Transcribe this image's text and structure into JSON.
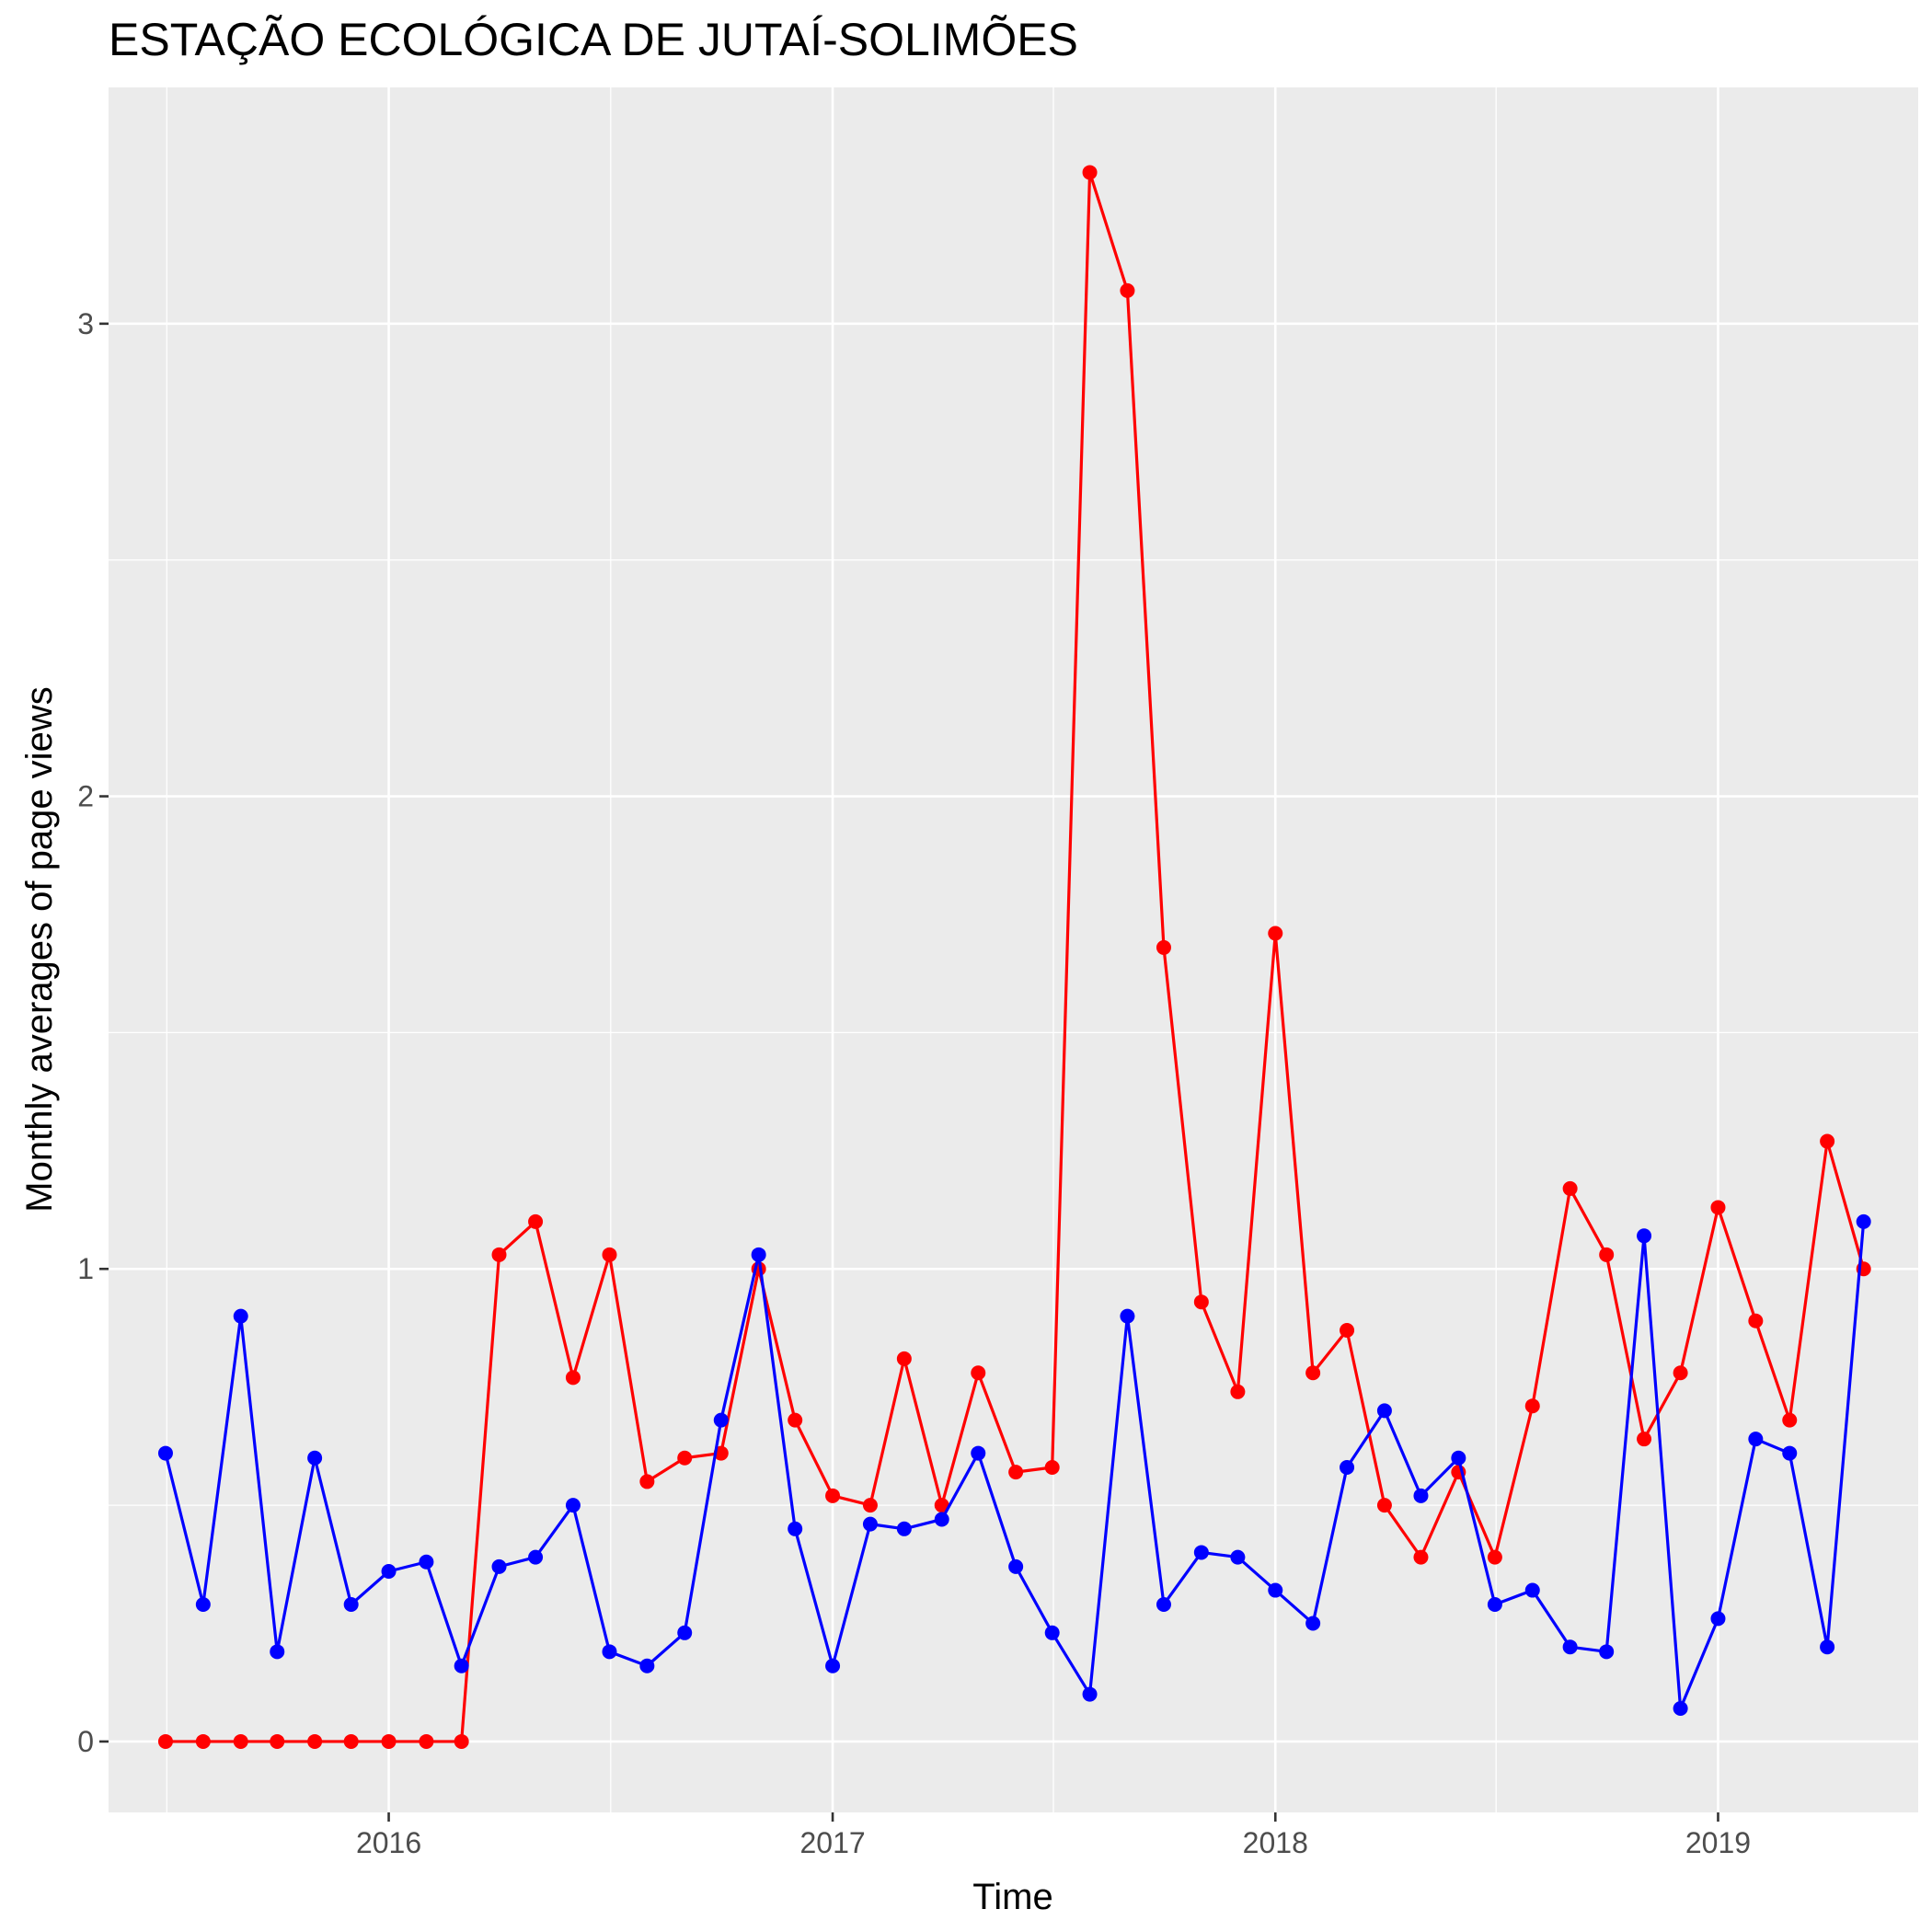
{
  "chart_data": {
    "type": "line",
    "title": "ESTAÇÃO ECOLÓGICA DE JUTAÍ-SOLIMÕES",
    "xlabel": "Time",
    "ylabel": "Monthly averages of page views",
    "x_ticks": [
      {
        "date": "2016-01",
        "label": "2016"
      },
      {
        "date": "2017-01",
        "label": "2017"
      },
      {
        "date": "2018-01",
        "label": "2018"
      },
      {
        "date": "2019-01",
        "label": "2019"
      }
    ],
    "y_ticks": [
      0,
      1,
      2,
      3
    ],
    "ylim": [
      -0.15,
      3.5
    ],
    "xlim": [
      "2015-05-15",
      "2019-06-15"
    ],
    "grid": true,
    "background": "#ebebeb",
    "x": [
      "2015-07",
      "2015-08",
      "2015-09",
      "2015-10",
      "2015-11",
      "2015-12",
      "2016-01",
      "2016-02",
      "2016-03",
      "2016-04",
      "2016-05",
      "2016-06",
      "2016-07",
      "2016-08",
      "2016-09",
      "2016-10",
      "2016-11",
      "2016-12",
      "2017-01",
      "2017-02",
      "2017-03",
      "2017-04",
      "2017-05",
      "2017-06",
      "2017-07",
      "2017-08",
      "2017-09",
      "2017-10",
      "2017-11",
      "2017-12",
      "2018-01",
      "2018-02",
      "2018-03",
      "2018-04",
      "2018-05",
      "2018-06",
      "2018-07",
      "2018-08",
      "2018-09",
      "2018-10",
      "2018-11",
      "2018-12",
      "2019-01",
      "2019-02",
      "2019-03",
      "2019-04",
      "2019-05"
    ],
    "series": [
      {
        "color": "#ff0000",
        "values": [
          0,
          0,
          0,
          0,
          0,
          0,
          0,
          0,
          0,
          1.03,
          1.1,
          0.77,
          1.03,
          0.55,
          0.6,
          0.61,
          1.0,
          0.68,
          0.52,
          0.5,
          0.81,
          0.5,
          0.78,
          0.57,
          0.58,
          3.32,
          3.07,
          1.68,
          0.93,
          0.74,
          1.71,
          0.78,
          0.87,
          0.5,
          0.39,
          0.57,
          0.39,
          0.71,
          1.17,
          1.03,
          0.64,
          0.78,
          1.13,
          0.89,
          0.68,
          1.27,
          1.0
        ]
      },
      {
        "color": "#0000ff",
        "values": [
          0.61,
          0.29,
          0.9,
          0.19,
          0.6,
          0.29,
          0.36,
          0.38,
          0.16,
          0.37,
          0.39,
          0.5,
          0.19,
          0.16,
          0.23,
          0.68,
          1.03,
          0.45,
          0.16,
          0.46,
          0.45,
          0.47,
          0.61,
          0.37,
          0.23,
          0.1,
          0.9,
          0.29,
          0.4,
          0.39,
          0.32,
          0.25,
          0.58,
          0.7,
          0.52,
          0.6,
          0.29,
          0.32,
          0.2,
          0.19,
          1.07,
          0.07,
          0.26,
          0.64,
          0.61,
          0.2,
          1.1
        ]
      }
    ]
  }
}
